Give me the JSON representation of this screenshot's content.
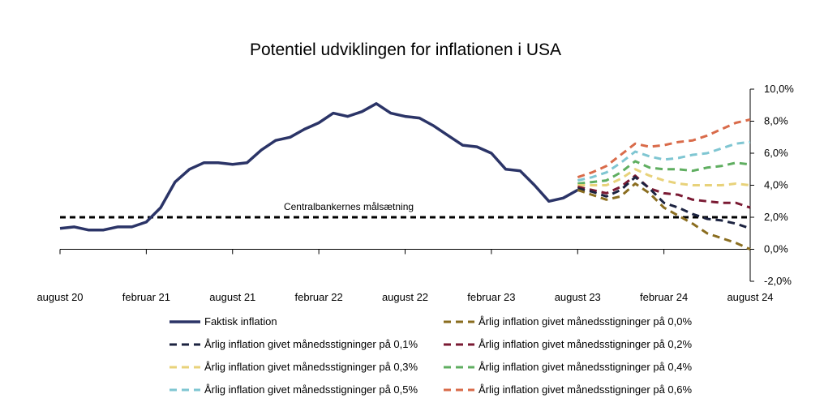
{
  "chart_data": {
    "type": "line",
    "title": "Potentiel udviklingen for inflationen i USA",
    "xlabel": "",
    "ylabel": "",
    "x_tick_labels": [
      "august 20",
      "februar 21",
      "august 21",
      "februar 22",
      "august 22",
      "februar 23",
      "august 23",
      "februar 24",
      "august 24"
    ],
    "y_tick_labels": [
      "10,0%",
      "8,0%",
      "6,0%",
      "4,0%",
      "2,0%",
      "0,0%",
      "-2,0%"
    ],
    "y_ticks": [
      10,
      8,
      6,
      4,
      2,
      0,
      -2
    ],
    "ylim": [
      -2,
      10
    ],
    "x_months": [
      "2020-08",
      "2020-09",
      "2020-10",
      "2020-11",
      "2020-12",
      "2021-01",
      "2021-02",
      "2021-03",
      "2021-04",
      "2021-05",
      "2021-06",
      "2021-07",
      "2021-08",
      "2021-09",
      "2021-10",
      "2021-11",
      "2021-12",
      "2022-01",
      "2022-02",
      "2022-03",
      "2022-04",
      "2022-05",
      "2022-06",
      "2022-07",
      "2022-08",
      "2022-09",
      "2022-10",
      "2022-11",
      "2022-12",
      "2023-01",
      "2023-02",
      "2023-03",
      "2023-04",
      "2023-05",
      "2023-06",
      "2023-07",
      "2023-08",
      "2023-09",
      "2023-10",
      "2023-11",
      "2023-12",
      "2024-01",
      "2024-02",
      "2024-03",
      "2024-04",
      "2024-05",
      "2024-06",
      "2024-07",
      "2024-08"
    ],
    "target": {
      "value": 2.0,
      "label": "Centralbankernes målsætning",
      "color": "#000000"
    },
    "series": [
      {
        "name": "Faktisk inflation",
        "color": "#2b3467",
        "dashed": false,
        "start": "2020-08",
        "values": [
          1.3,
          1.4,
          1.2,
          1.2,
          1.4,
          1.4,
          1.7,
          2.6,
          4.2,
          5.0,
          5.4,
          5.4,
          5.3,
          5.4,
          6.2,
          6.8,
          7.0,
          7.5,
          7.9,
          8.5,
          8.3,
          8.6,
          9.1,
          8.5,
          8.3,
          8.2,
          7.7,
          7.1,
          6.5,
          6.4,
          6.0,
          5.0,
          4.9,
          4.0,
          3.0,
          3.2,
          3.7
        ]
      },
      {
        "name": "Årlig inflation givet månedsstigninger på 0,0%",
        "color": "#8a6d1f",
        "dashed": true,
        "start": "2023-08",
        "values": [
          3.7,
          3.4,
          3.1,
          3.3,
          4.1,
          3.5,
          2.6,
          2.1,
          1.6,
          1.0,
          0.7,
          0.4,
          0.0
        ]
      },
      {
        "name": "Årlig inflation givet månedsstigninger på 0,1%",
        "color": "#1c2340",
        "dashed": true,
        "start": "2023-08",
        "values": [
          3.8,
          3.6,
          3.3,
          3.7,
          4.5,
          3.8,
          2.9,
          2.6,
          2.2,
          1.9,
          1.8,
          1.6,
          1.3
        ]
      },
      {
        "name": "Årlig inflation givet månedsstigninger på 0,2%",
        "color": "#7a1a33",
        "dashed": true,
        "start": "2023-08",
        "values": [
          3.9,
          3.7,
          3.5,
          3.9,
          4.6,
          3.8,
          3.5,
          3.4,
          3.1,
          3.0,
          2.9,
          2.9,
          2.6
        ]
      },
      {
        "name": "Årlig inflation givet månedsstigninger på 0,3%",
        "color": "#e8d27a",
        "dashed": true,
        "start": "2023-08",
        "values": [
          4.0,
          4.0,
          4.0,
          4.4,
          5.0,
          4.6,
          4.3,
          4.1,
          4.0,
          4.0,
          4.0,
          4.1,
          4.0
        ]
      },
      {
        "name": "Årlig inflation givet månedsstigninger på 0,4%",
        "color": "#5fae60",
        "dashed": true,
        "start": "2023-08",
        "values": [
          4.1,
          4.2,
          4.3,
          4.8,
          5.5,
          5.1,
          5.0,
          5.0,
          4.9,
          5.1,
          5.2,
          5.4,
          5.3
        ]
      },
      {
        "name": "Årlig inflation givet månedsstigninger på 0,5%",
        "color": "#7fc6d2",
        "dashed": true,
        "start": "2023-08",
        "values": [
          4.3,
          4.5,
          4.8,
          5.4,
          6.1,
          5.8,
          5.6,
          5.7,
          5.9,
          6.0,
          6.3,
          6.6,
          6.7
        ]
      },
      {
        "name": "Årlig inflation givet månedsstigninger på 0,6%",
        "color": "#d96b4a",
        "dashed": true,
        "start": "2023-08",
        "values": [
          4.5,
          4.8,
          5.2,
          5.9,
          6.6,
          6.4,
          6.5,
          6.7,
          6.8,
          7.1,
          7.5,
          7.9,
          8.1
        ]
      }
    ],
    "legend_position": "bottom",
    "grid": false
  }
}
